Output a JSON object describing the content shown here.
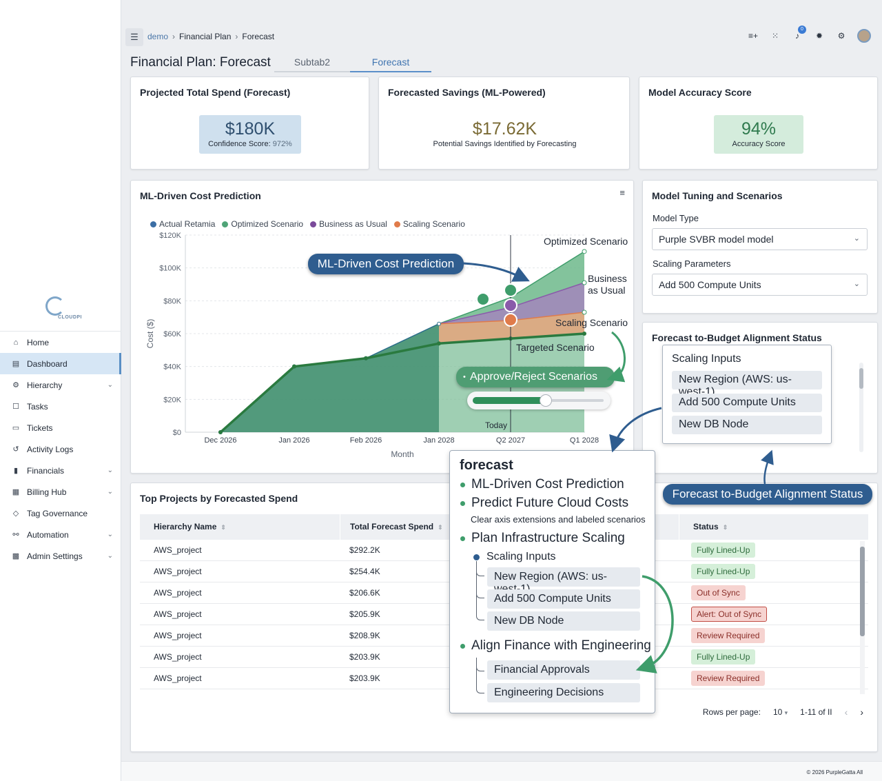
{
  "brand": {
    "logo_text": "CLOUDPI"
  },
  "sidebar": {
    "items": [
      {
        "label": "Home",
        "icon": "home-icon",
        "glyph": "⌂",
        "caret": false,
        "active": false
      },
      {
        "label": "Dashboard",
        "icon": "dashboard-icon",
        "glyph": "▤",
        "caret": false,
        "active": true
      },
      {
        "label": "Hierarchy",
        "icon": "hierarchy-icon",
        "glyph": "⚙",
        "caret": true,
        "active": false
      },
      {
        "label": "Tasks",
        "icon": "tasks-icon",
        "glyph": "☐",
        "caret": false,
        "active": false
      },
      {
        "label": "Tickets",
        "icon": "tickets-icon",
        "glyph": "▭",
        "caret": false,
        "active": false
      },
      {
        "label": "Activity Logs",
        "icon": "history-icon",
        "glyph": "↺",
        "caret": false,
        "active": false
      },
      {
        "label": "Financials",
        "icon": "document-icon",
        "glyph": "▮",
        "caret": true,
        "active": false
      },
      {
        "label": "Billing Hub",
        "icon": "billing-icon",
        "glyph": "▦",
        "caret": true,
        "active": false
      },
      {
        "label": "Tag Governance",
        "icon": "tag-icon",
        "glyph": "◇",
        "caret": false,
        "active": false
      },
      {
        "label": "Automation",
        "icon": "automation-icon",
        "glyph": "⚯",
        "caret": true,
        "active": false
      },
      {
        "label": "Admin Settings",
        "icon": "admin-icon",
        "glyph": "▩",
        "caret": true,
        "active": false
      }
    ]
  },
  "header": {
    "breadcrumb": [
      "demo",
      "Financial Plan",
      "Forecast"
    ],
    "notification_count": "0",
    "title": "Financial Plan: Forecast",
    "tabs": [
      {
        "label": "Subtab2",
        "active": false
      },
      {
        "label": "Forecast",
        "active": true
      }
    ]
  },
  "kpis": {
    "spend": {
      "title": "Projected Total Spend (Forecast)",
      "value": "$180K",
      "label_prefix": "Confidence Score: ",
      "label_value": "972%",
      "color": "#2f4f6f",
      "bg": "#cfe0ee"
    },
    "savings": {
      "title": "Forecasted Savings (ML-Powered)",
      "value": "$17.62K",
      "label": "Potential Savings Identified by Forecasting",
      "color": "#7a6a34"
    },
    "accuracy": {
      "title": "Model Accuracy Score",
      "value": "94%",
      "label": "Accuracy Score",
      "color": "#2f7a4e",
      "bg": "#d4ecdc"
    }
  },
  "chart_card": {
    "title": "ML-Driven Cost Prediction"
  },
  "chart_data": {
    "type": "area",
    "ylabel": "Cost ($)",
    "xlabel": "Month",
    "ylim": [
      0,
      120000
    ],
    "y_ticks": [
      "$0",
      "$20K",
      "$40K",
      "$60K",
      "$80K",
      "$100K",
      "$120K"
    ],
    "categories": [
      "Dec 2026",
      "Jan 2026",
      "Feb 2026",
      "Jan 2028",
      "Q2 2027",
      "Q1 2028"
    ],
    "legend": [
      {
        "name": "Actual Retamia",
        "color": "#3b6ea5"
      },
      {
        "name": "Optimized Scenario",
        "color": "#4fa477"
      },
      {
        "name": "Business as Usual",
        "color": "#7a4a9a"
      },
      {
        "name": "Scaling Scenario",
        "color": "#e07b4a"
      }
    ],
    "series": [
      {
        "name": "Actual Retamia",
        "values": [
          0,
          40000,
          45000,
          66000,
          null,
          null
        ]
      },
      {
        "name": "Optimized Scenario",
        "values": [
          null,
          null,
          null,
          66000,
          82000,
          110000
        ]
      },
      {
        "name": "Business as Usual",
        "values": [
          null,
          null,
          null,
          66000,
          76000,
          91000
        ]
      },
      {
        "name": "Scaling Scenario",
        "values": [
          null,
          null,
          null,
          66000,
          68000,
          73000
        ]
      },
      {
        "name": "Targeted Scenario",
        "values": [
          0,
          40000,
          45000,
          54000,
          57000,
          60000
        ]
      }
    ],
    "labels": {
      "optimized": "Optimized Scenario",
      "bau_1": "Business",
      "bau_2": "as Usual",
      "scaling": "Scaling Scenario",
      "targeted": "Targeted Scenario",
      "today": "Today"
    },
    "colors": {
      "actual": "#3f8f6e",
      "optimized": "#6db88b",
      "bau": "#a77ec0",
      "scaling": "#f0a57e",
      "targeted": "#2a7a3f"
    }
  },
  "overlays": {
    "cost_callout": "ML-Driven Cost Prediction",
    "approve_callout": "Approve/Reject Scenarios",
    "slider_value": 0.55,
    "alignment_callout": "Forecast to-Budget Alignment Status"
  },
  "tuning": {
    "title": "Model Tuning and Scenarios",
    "model_type_label": "Model Type",
    "model_type_value": "Purple SVBR model model",
    "scaling_label": "Scaling Parameters",
    "scaling_value": "Add 500 Compute Units"
  },
  "alignment": {
    "title": "Forecast to-Budget Alignment Status",
    "inputs_title": "Scaling Inputs",
    "inputs": [
      "New Region (AWS: us-west-1)",
      "Add 500 Compute Units",
      "New DB Node"
    ]
  },
  "forecast_panel": {
    "title": "forecast",
    "b1": "ML-Driven Cost Prediction",
    "b2": "Predict Future Cloud Costs",
    "b2_sub": "Clear axis extensions and labeled scenarios",
    "b3": "Plan Infrastructure Scaling",
    "b3_sub": "Scaling Inputs",
    "b3_items": [
      "New Region (AWS: us-west-1)",
      "Add 500 Compute Units",
      "New DB Node"
    ],
    "b4": "Align Finance with Engineering",
    "b4_items": [
      "Financial Approvals",
      "Engineering Decisions"
    ]
  },
  "projects": {
    "title": "Top Projects by Forecasted Spend",
    "columns": [
      "Hierarchy Name",
      "Total Forecast Spend",
      "Status"
    ],
    "rows": [
      {
        "name": "AWS_project",
        "spend": "$292.2K",
        "status": "Fully Lined-Up",
        "tone": "green"
      },
      {
        "name": "AWS_project",
        "spend": "$254.4K",
        "status": "Fully Lined-Up",
        "tone": "green"
      },
      {
        "name": "AWS_project",
        "spend": "$206.6K",
        "status": "Out of Sync",
        "tone": "red"
      },
      {
        "name": "AWS_project",
        "spend": "$205.9K",
        "status": "Alert: Out of Sync",
        "tone": "alert"
      },
      {
        "name": "AWS_project",
        "spend": "$208.9K",
        "status": "Review Required",
        "tone": "red"
      },
      {
        "name": "AWS_project",
        "spend": "$203.9K",
        "status": "Fully Lined-Up",
        "tone": "green"
      },
      {
        "name": "AWS_project",
        "spend": "$203.9K",
        "status": "Review Required",
        "tone": "red"
      }
    ],
    "pagination": {
      "rows_label": "Rows per page:",
      "rows_value": "10",
      "range": "1-11 of II"
    }
  },
  "footer": {
    "text": "© 2026 PurpleGatta All"
  }
}
